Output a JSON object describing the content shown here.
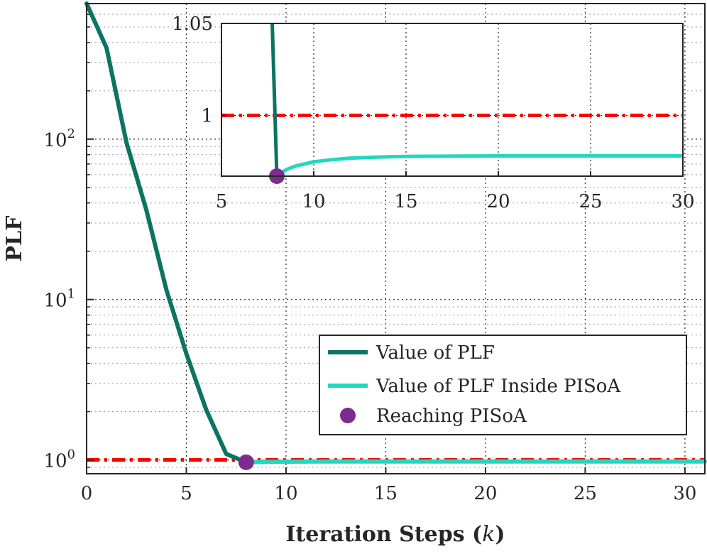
{
  "chart_data": {
    "type": "line",
    "xlabel": "Iteration Steps (k)",
    "xlabel_main": "Iteration Steps (",
    "xlabel_var": "k",
    "xlabel_close": ")",
    "ylabel": "PLF",
    "y_scale": "log",
    "xlim": [
      0,
      31
    ],
    "ylim": [
      0.82,
      700
    ],
    "x_ticks": [
      0,
      5,
      10,
      15,
      20,
      25,
      30
    ],
    "x_tick_labels": [
      "0",
      "5",
      "10",
      "15",
      "20",
      "25",
      "30"
    ],
    "y_ticks": [
      1,
      10,
      100
    ],
    "y_tick_labels": [
      {
        "base": "10",
        "exp": "0"
      },
      {
        "base": "10",
        "exp": "1"
      },
      {
        "base": "10",
        "exp": "2"
      }
    ],
    "grid": true,
    "series": [
      {
        "name": "Value of PLF",
        "color": "#0b7463",
        "x": [
          0,
          1,
          2,
          3,
          4,
          5,
          6,
          7,
          8
        ],
        "y": [
          700,
          370,
          95,
          36,
          11.5,
          4.6,
          2.05,
          1.09,
          0.967
        ]
      },
      {
        "name": "Value of PLF Inside PISoA",
        "color": "#22d7c0",
        "x": [
          8,
          8.5,
          9,
          10,
          11,
          12,
          13,
          14,
          15,
          16,
          18,
          20,
          25,
          31
        ],
        "y": [
          0.967,
          0.9705,
          0.9725,
          0.9748,
          0.976,
          0.9768,
          0.9772,
          0.9775,
          0.9777,
          0.9778,
          0.9779,
          0.978,
          0.978,
          0.978
        ]
      }
    ],
    "threshold": {
      "y": 1,
      "color": "#ff0000",
      "style": "dash-dot"
    },
    "marker": {
      "name": "Reaching PISoA",
      "x": 8,
      "y": 0.967,
      "color": "#7b2d8e"
    },
    "legend": {
      "placement": "bottom-right",
      "entries": [
        "Value of PLF",
        "Value of PLF Inside PISoA",
        "Reaching PISoA"
      ]
    },
    "inset": {
      "xlim": [
        5,
        30
      ],
      "ylim": [
        0.967,
        1.05
      ],
      "x_ticks": [
        5,
        10,
        15,
        20,
        25,
        30
      ],
      "x_tick_labels": [
        "5",
        "10",
        "15",
        "20",
        "25",
        "30"
      ],
      "y_ticks": [
        1,
        1.05
      ],
      "y_tick_labels": [
        "1",
        "1.05"
      ],
      "series": [
        {
          "name": "Value of PLF",
          "x": [
            7.75,
            8
          ],
          "y": [
            1.05,
            0.967
          ]
        },
        {
          "name": "Value of PLF Inside PISoA",
          "x": [
            8,
            8.5,
            9,
            10,
            11,
            12,
            13,
            14,
            15,
            16,
            18,
            20,
            25,
            30
          ],
          "y": [
            0.967,
            0.9705,
            0.9725,
            0.9748,
            0.976,
            0.9768,
            0.9772,
            0.9775,
            0.9777,
            0.9778,
            0.9779,
            0.978,
            0.978,
            0.978
          ]
        }
      ],
      "threshold": {
        "y": 1
      },
      "marker": {
        "x": 8,
        "y": 0.967
      }
    }
  }
}
